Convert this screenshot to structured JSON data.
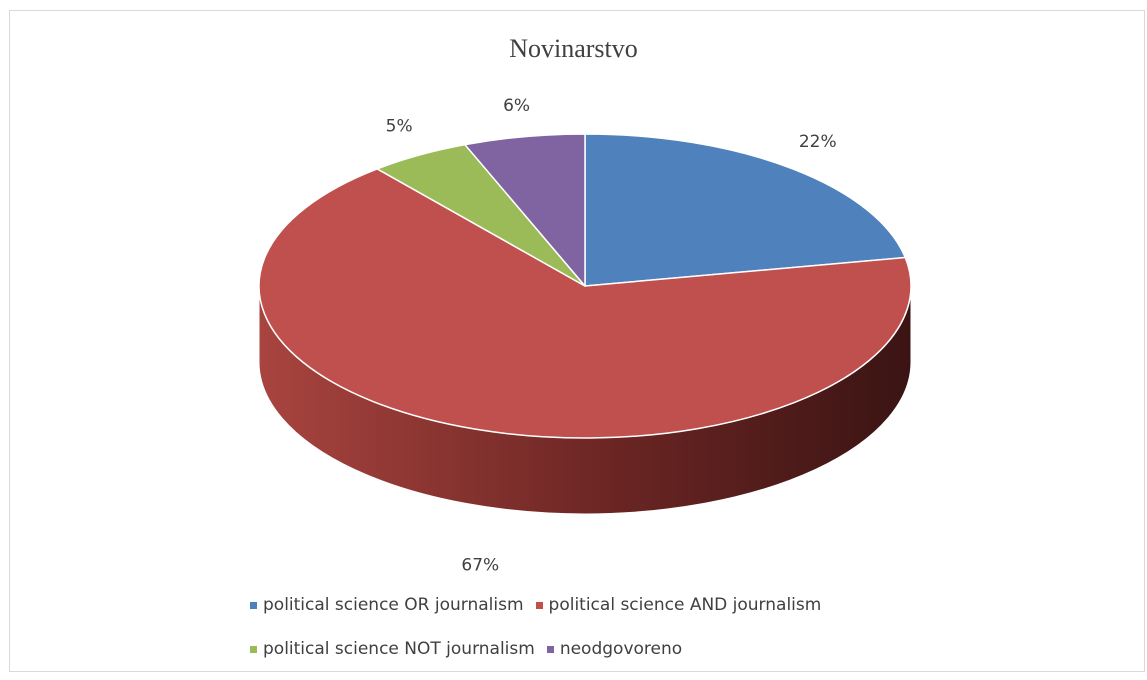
{
  "chart_data": {
    "type": "pie",
    "title": "Novinarstvo",
    "slices": [
      {
        "label": "political science OR journalism",
        "value": 22,
        "display": "22%",
        "color": "#4f81bd"
      },
      {
        "label": "political science AND journalism",
        "value": 67,
        "display": "67%",
        "color": "#c0504d"
      },
      {
        "label": "political science NOT journalism",
        "value": 5,
        "display": "5%",
        "color": "#9bbb59"
      },
      {
        "label": "neodgovoreno",
        "value": 6,
        "display": "6%",
        "color": "#8064a2"
      }
    ],
    "legend_position": "bottom",
    "style": "3d"
  }
}
